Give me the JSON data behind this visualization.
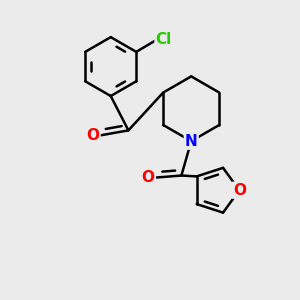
{
  "background_color": "#ebebeb",
  "bond_color": "#000000",
  "bond_width": 1.8,
  "atom_colors": {
    "O": "#ff0000",
    "N": "#0000ff",
    "Cl": "#22cc00",
    "C": "#000000"
  },
  "font_size": 11,
  "fig_size": [
    3.0,
    3.0
  ],
  "xlim": [
    -1.1,
    1.3
  ],
  "ylim": [
    -1.4,
    1.6
  ]
}
